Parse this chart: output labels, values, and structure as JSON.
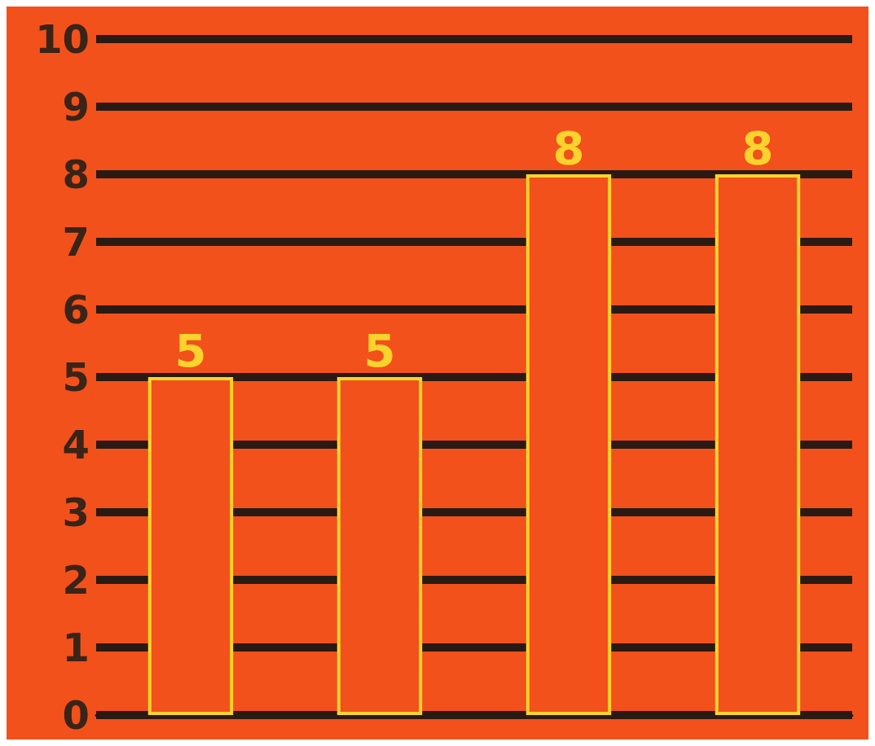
{
  "chart_data": {
    "type": "bar",
    "categories": [
      null,
      null,
      null,
      null
    ],
    "values": [
      5,
      5,
      8,
      8
    ],
    "color": "#f2511b",
    "ylim": [
      0,
      10
    ],
    "yticks": [
      0,
      1,
      2,
      3,
      4,
      5,
      6,
      7,
      8,
      9,
      10
    ],
    "grid": "y",
    "data_labels": true
  }
}
